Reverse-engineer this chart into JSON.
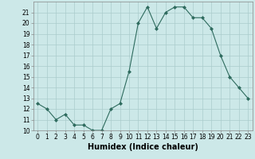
{
  "x": [
    0,
    1,
    2,
    3,
    4,
    5,
    6,
    7,
    8,
    9,
    10,
    11,
    12,
    13,
    14,
    15,
    16,
    17,
    18,
    19,
    20,
    21,
    22,
    23
  ],
  "y": [
    12.5,
    12,
    11,
    11.5,
    10.5,
    10.5,
    10,
    10,
    12,
    12.5,
    15.5,
    20,
    21.5,
    19.5,
    21,
    21.5,
    21.5,
    20.5,
    20.5,
    19.5,
    17,
    15,
    14,
    13
  ],
  "line_color": "#2e6b5e",
  "marker": "D",
  "marker_size": 2,
  "bg_color": "#cce8e8",
  "grid_color": "#aacccc",
  "xlabel": "Humidex (Indice chaleur)",
  "xlim": [
    -0.5,
    23.5
  ],
  "ylim": [
    10,
    22
  ],
  "yticks": [
    10,
    11,
    12,
    13,
    14,
    15,
    16,
    17,
    18,
    19,
    20,
    21
  ],
  "xticks": [
    0,
    1,
    2,
    3,
    4,
    5,
    6,
    7,
    8,
    9,
    10,
    11,
    12,
    13,
    14,
    15,
    16,
    17,
    18,
    19,
    20,
    21,
    22,
    23
  ],
  "xlabel_fontsize": 7,
  "tick_fontsize": 5.5,
  "linewidth": 0.8
}
